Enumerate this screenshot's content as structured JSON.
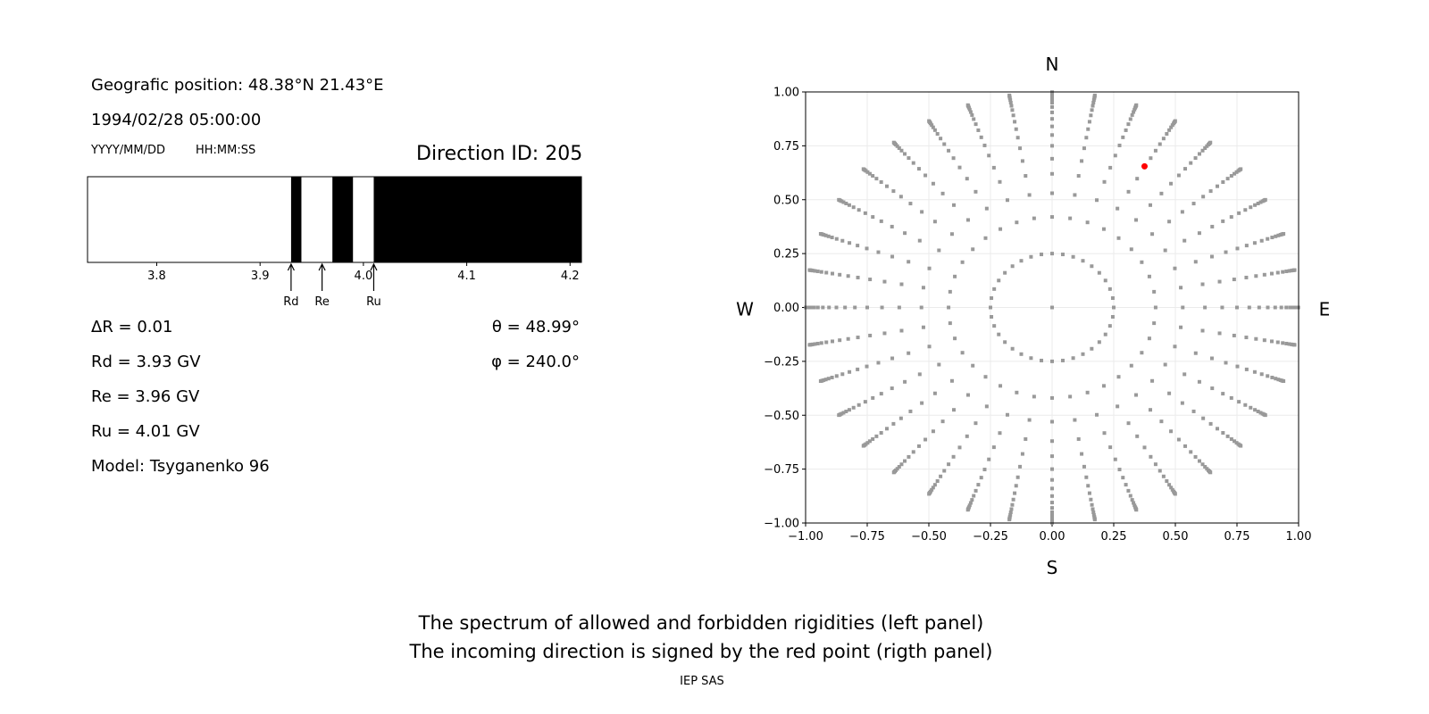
{
  "left_panel": {
    "geo_position": "Geografic position: 48.38°N 21.43°E",
    "datetime": "1994/02/28 05:00:00",
    "date_format": "YYYY/MM/DD",
    "time_format": "HH:MM:SS",
    "direction_id": "Direction ID: 205",
    "delta_r": "ΔR = 0.01",
    "rd": "Rd = 3.93 GV",
    "re": "Re = 3.96 GV",
    "ru": "Ru = 4.01 GV",
    "model": "Model: Tsyganenko 96",
    "theta": "θ = 48.99°",
    "phi": "φ = 240.0°"
  },
  "chart_data": [
    {
      "type": "bar",
      "description_kind": "rigidity spectrum (white = allowed, black = forbidden)",
      "xlim": [
        3.733,
        4.211
      ],
      "xticks": [
        "3.8",
        "3.9",
        "4.0",
        "4.1",
        "4.2"
      ],
      "segments": [
        {
          "from": 3.733,
          "to": 3.93,
          "state": "allowed",
          "color": "#ffffff"
        },
        {
          "from": 3.93,
          "to": 3.94,
          "state": "forbidden",
          "color": "#000000"
        },
        {
          "from": 3.94,
          "to": 3.97,
          "state": "allowed",
          "color": "#ffffff"
        },
        {
          "from": 3.97,
          "to": 3.99,
          "state": "forbidden",
          "color": "#000000"
        },
        {
          "from": 3.99,
          "to": 4.01,
          "state": "allowed",
          "color": "#ffffff"
        },
        {
          "from": 4.01,
          "to": 4.211,
          "state": "forbidden",
          "color": "#000000"
        }
      ],
      "markers": [
        {
          "label": "Rd",
          "value": 3.93
        },
        {
          "label": "Re",
          "value": 3.96
        },
        {
          "label": "Ru",
          "value": 4.01
        }
      ]
    },
    {
      "type": "scatter",
      "xlim": [
        -1.0,
        1.0
      ],
      "ylim": [
        -1.0,
        1.0
      ],
      "grid": true,
      "xticks": [
        "−1.00",
        "−0.75",
        "−0.50",
        "−0.25",
        "0.00",
        "0.25",
        "0.50",
        "0.75",
        "1.00"
      ],
      "yticks": [
        "−1.00",
        "−0.75",
        "−0.50",
        "−0.25",
        "0.00",
        "0.25",
        "0.50",
        "0.75",
        "1.00"
      ],
      "compass": {
        "north": "N",
        "south": "S",
        "west": "W",
        "east": "E"
      },
      "grid_points": {
        "color": "#999999",
        "center": [
          0,
          0
        ],
        "azimuth_step_deg": 10,
        "radii": [
          0.25,
          0.42,
          0.53,
          0.62,
          0.69,
          0.75,
          0.8,
          0.84,
          0.875,
          0.905,
          0.93,
          0.95,
          0.965,
          0.977,
          0.986,
          0.992,
          0.996,
          0.999
        ]
      },
      "selected_point": {
        "x": 0.375,
        "y": 0.655,
        "color": "#ff0000"
      }
    }
  ],
  "caption": {
    "line1": "The spectrum of allowed and forbidden rigidities (left panel)",
    "line2": "The incoming direction is signed by the red point (rigth panel)",
    "credit": "IEP SAS"
  }
}
